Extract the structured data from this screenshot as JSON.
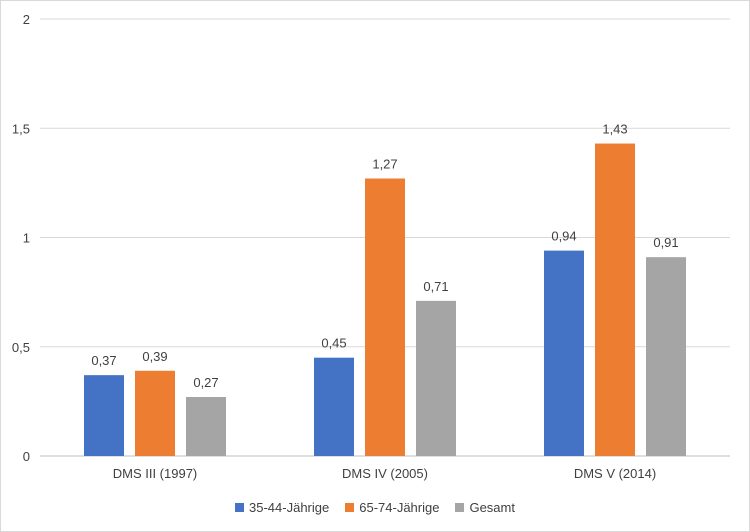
{
  "chart_data": {
    "type": "bar",
    "categories": [
      "DMS III (1997)",
      "DMS IV (2005)",
      "DMS V (2014)"
    ],
    "series": [
      {
        "name": "35-44-Jährige",
        "color": "#4472c4",
        "values": [
          0.37,
          0.45,
          0.94
        ],
        "labels": [
          "0,37",
          "0,45",
          "0,94"
        ]
      },
      {
        "name": "65-74-Jährige",
        "color": "#ed7d31",
        "values": [
          0.39,
          1.27,
          1.43
        ],
        "labels": [
          "0,39",
          "1,27",
          "1,43"
        ]
      },
      {
        "name": "Gesamt",
        "color": "#a5a5a5",
        "values": [
          0.27,
          0.71,
          0.91
        ],
        "labels": [
          "0,27",
          "0,71",
          "0,91"
        ]
      }
    ],
    "y_ticks": [
      {
        "value": 0,
        "label": "0"
      },
      {
        "value": 0.5,
        "label": "0,5"
      },
      {
        "value": 1,
        "label": "1"
      },
      {
        "value": 1.5,
        "label": "1,5"
      },
      {
        "value": 2,
        "label": "2"
      }
    ],
    "ylim": [
      0,
      2
    ],
    "grid": true,
    "legend_position": "bottom"
  }
}
